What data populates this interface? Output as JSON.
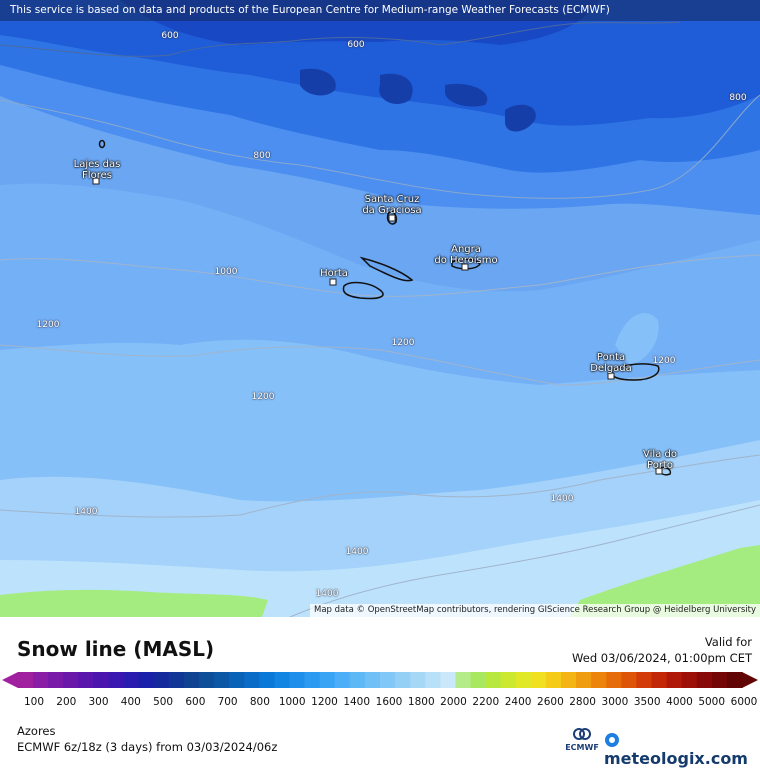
{
  "banner": "This service is based on data and products of the European Centre for Medium-range Weather Forecasts (ECMWF)",
  "attribution": "Map data © OpenStreetMap contributors, rendering GIScience Research Group @ Heidelberg University",
  "cities": [
    {
      "lines": [
        "Lajes das",
        "Flores"
      ]
    },
    {
      "lines": [
        "Santa Cruz",
        "da Graciosa"
      ]
    },
    {
      "lines": [
        "Angra",
        "do Heroísmo"
      ]
    },
    {
      "lines": [
        "Horta"
      ]
    },
    {
      "lines": [
        "Ponta",
        "Delgada"
      ]
    },
    {
      "lines": [
        "Vila do",
        "Porto"
      ]
    }
  ],
  "contour_labels": [
    "600",
    "600",
    "800",
    "800",
    "1000",
    "1200",
    "1200",
    "1200",
    "1200",
    "1400",
    "1400",
    "1400",
    "1400"
  ],
  "legend": {
    "title": "Snow line (MASL)",
    "valid_label": "Valid for",
    "valid_time": "Wed 03/06/2024, 01:00pm CET",
    "region": "Azores",
    "model": "ECMWF 6z/18z (3 days) from 03/03/2024/06z",
    "ecmwf_logo_text": "ECMWF",
    "brand": "meteologix.com",
    "ticks": [
      "100",
      "200",
      "300",
      "400",
      "500",
      "600",
      "700",
      "800",
      "1000",
      "1200",
      "1400",
      "1600",
      "1800",
      "2000",
      "2200",
      "2400",
      "2600",
      "2800",
      "3000",
      "3500",
      "4000",
      "5000",
      "6000"
    ],
    "colors": [
      "#a020a0",
      "#8a1ea6",
      "#7a1aa8",
      "#6a18aa",
      "#5a16ac",
      "#4a14ae",
      "#3a18b0",
      "#2a1cae",
      "#1a20aa",
      "#142a9c",
      "#123696",
      "#104292",
      "#0e4e98",
      "#0c58a6",
      "#0a62b6",
      "#0a6cc6",
      "#0a78d6",
      "#1284e2",
      "#1e90ec",
      "#2c9af0",
      "#3aa4f4",
      "#4caef6",
      "#5eb8f6",
      "#70c0f6",
      "#82c8f6",
      "#94d0f6",
      "#a6d8f6",
      "#b8e0f8",
      "#cae8fa",
      "#b4ec8a",
      "#a8e860",
      "#b8e840",
      "#cce830",
      "#e0e828",
      "#f0e020",
      "#f4cc18",
      "#f4b414",
      "#f09c10",
      "#ec840c",
      "#e66c0a",
      "#de5408",
      "#d23c08",
      "#c22808",
      "#b01808",
      "#9c1008",
      "#880a08",
      "#740606",
      "#600404"
    ]
  }
}
